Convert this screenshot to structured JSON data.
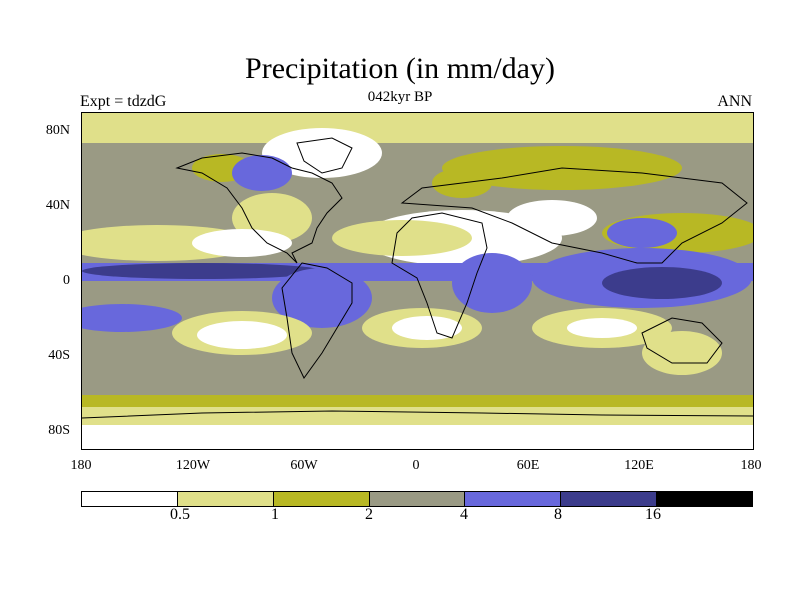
{
  "title": "Precipitation (in mm/day)",
  "subtitle": "042kyr BP",
  "left_label": "Expt = tdzdG",
  "right_label": "ANN",
  "colors": {
    "c0": "#ffffff",
    "c1": "#e0e08a",
    "c2": "#b8b824",
    "c3": "#9a9a84",
    "c4": "#6868dc",
    "c5": "#3c3c8c",
    "c6": "#000000",
    "coast": "#000000"
  },
  "map": {
    "lat_ticks": [
      "80N",
      "40N",
      "0",
      "40S",
      "80S"
    ],
    "lon_ticks": [
      "180",
      "120W",
      "60W",
      "0",
      "60E",
      "120E",
      "180"
    ]
  },
  "chart_data": {
    "type": "heatmap",
    "title": "Precipitation (in mm/day)",
    "subtitle": "042kyr BP",
    "experiment": "Expt = tdzdG",
    "season": "ANN",
    "units": "mm/day",
    "x_range": [
      -180,
      180
    ],
    "y_range": [
      -90,
      90
    ],
    "colorbar": {
      "levels": [
        "0.5",
        "1",
        "2",
        "4",
        "8",
        "16"
      ],
      "colors": [
        "#ffffff",
        "#e0e08a",
        "#b8b824",
        "#9a9a84",
        "#6868dc",
        "#3c3c8c",
        "#000000"
      ]
    }
  }
}
